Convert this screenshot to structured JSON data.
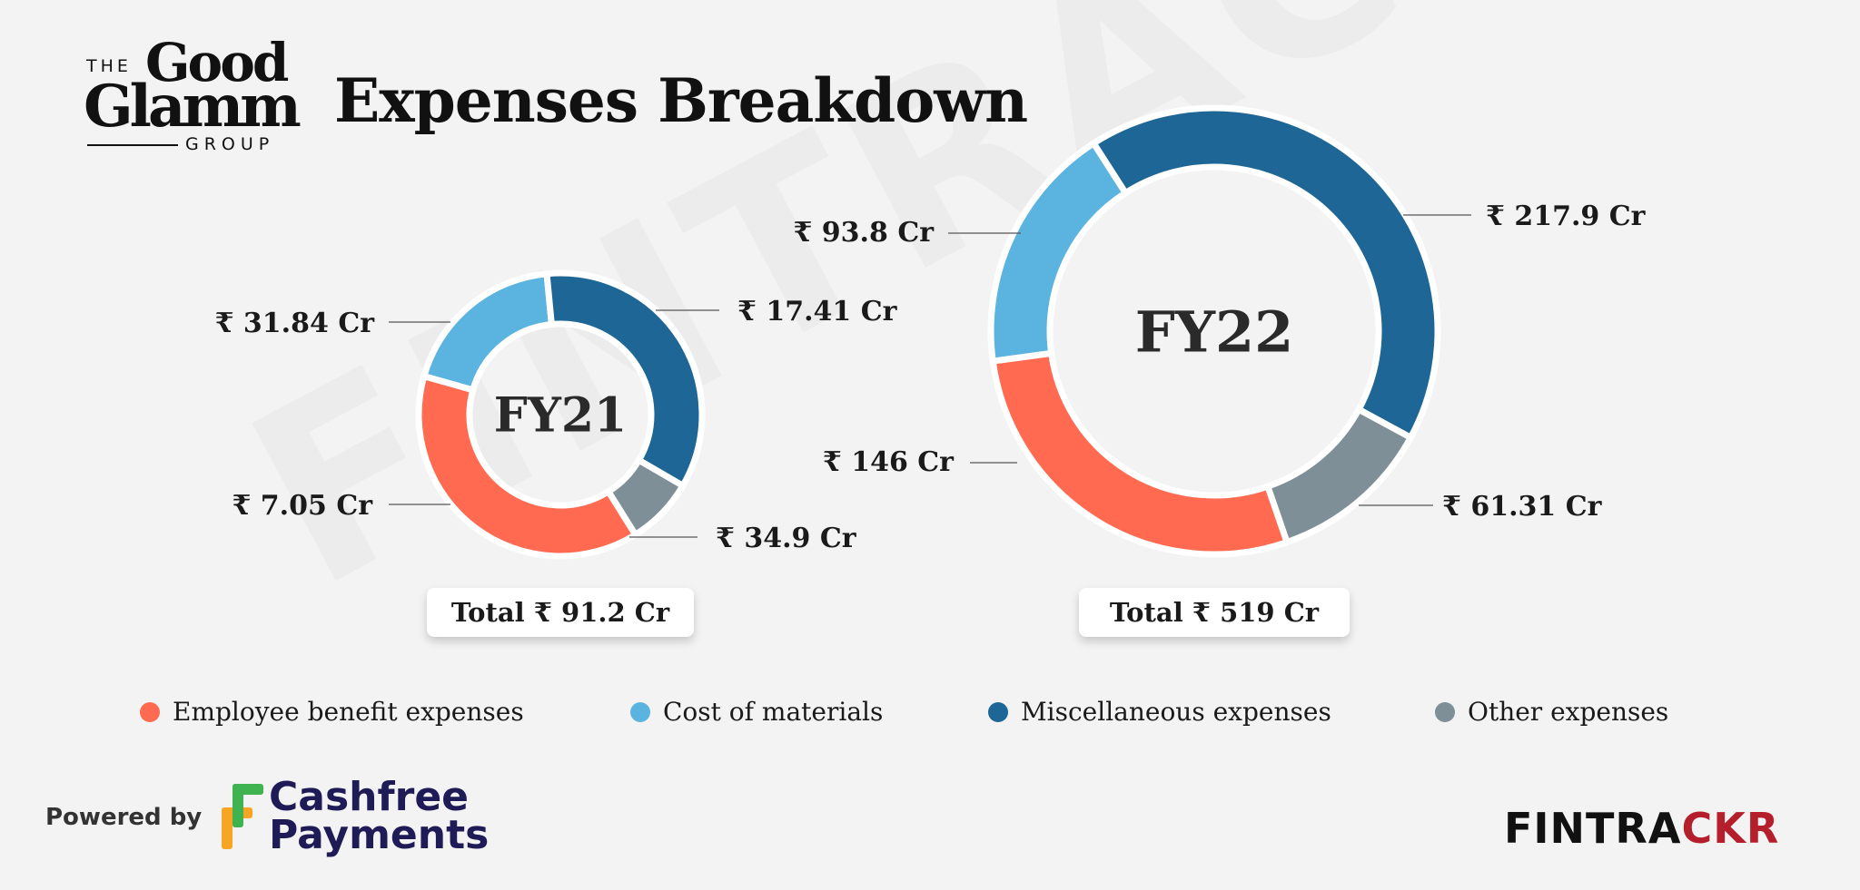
{
  "header": {
    "logo": {
      "line1": "THE",
      "line2": "Good",
      "line3": "Glamm",
      "line4": "GROUP"
    },
    "title": "Expenses Breakdown"
  },
  "watermark": "FINTRACKR",
  "colors": {
    "employee": "#ff6a50",
    "materials": "#5bb4e0",
    "misc": "#1d6696",
    "other": "#7f8f97"
  },
  "chart_data": [
    {
      "type": "pie",
      "title": "FY21",
      "unit": "₹ Cr",
      "categories": [
        "Employee benefit expenses",
        "Cost of materials",
        "Miscellaneous expenses",
        "Other expenses"
      ],
      "values": [
        34.9,
        17.41,
        31.84,
        7.05
      ],
      "data_labels": [
        "₹ 34.9 Cr",
        "₹ 17.41 Cr",
        "₹ 31.84 Cr",
        "₹ 7.05 Cr"
      ],
      "total_label": "Total ₹ 91.2 Cr"
    },
    {
      "type": "pie",
      "title": "FY22",
      "unit": "₹ Cr",
      "categories": [
        "Employee benefit expenses",
        "Cost of materials",
        "Miscellaneous expenses",
        "Other expenses"
      ],
      "values": [
        146,
        93.8,
        217.9,
        61.31
      ],
      "data_labels": [
        "₹ 146 Cr",
        "₹ 93.8 Cr",
        "₹ 217.9 Cr",
        "₹ 61.31 Cr"
      ],
      "total_label": "Total ₹ 519 Cr"
    }
  ],
  "legend": {
    "placement": "bottom",
    "items": [
      {
        "label": "Employee benefit expenses",
        "color": "#ff6a50"
      },
      {
        "label": "Cost of materials",
        "color": "#5bb4e0"
      },
      {
        "label": "Miscellaneous expenses",
        "color": "#1d6696"
      },
      {
        "label": "Other expenses",
        "color": "#7f8f97"
      }
    ]
  },
  "footer": {
    "powered_by": "Powered by",
    "sponsor_line1": "Cashfree",
    "sponsor_line2": "Payments",
    "brand_part1": "FINTRA",
    "brand_part2": "C",
    "brand_part3": "KR"
  }
}
